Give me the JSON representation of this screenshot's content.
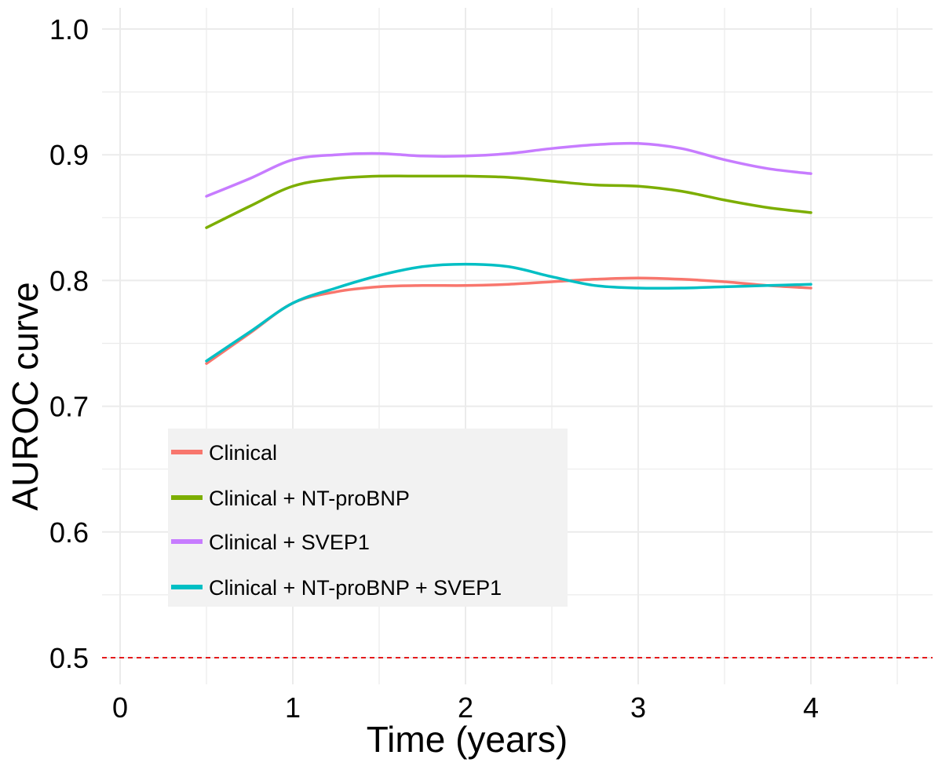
{
  "chart_data": {
    "type": "line",
    "xlabel": "Time (years)",
    "ylabel": "AUROC curve",
    "xlim": [
      0,
      4.7
    ],
    "ylim": [
      0.48,
      1.02
    ],
    "xticks": [
      "0",
      "1",
      "2",
      "3",
      "4"
    ],
    "yticks": [
      "0.5",
      "0.6",
      "0.7",
      "0.8",
      "0.9",
      "1.0"
    ],
    "reference_line": {
      "y": 0.5,
      "style": "dashed",
      "color": "#e41a1c"
    },
    "legend_position": "bottom-left",
    "series": [
      {
        "name": "Clinical",
        "color": "#f8766d",
        "x": [
          0.5,
          0.75,
          1.0,
          1.25,
          1.5,
          1.75,
          2.0,
          2.25,
          2.5,
          2.75,
          3.0,
          3.25,
          3.5,
          3.75,
          4.0
        ],
        "y": [
          0.734,
          0.758,
          0.782,
          0.791,
          0.795,
          0.796,
          0.796,
          0.797,
          0.799,
          0.801,
          0.802,
          0.801,
          0.799,
          0.796,
          0.794
        ]
      },
      {
        "name": "Clinical + NT-proBNP",
        "color": "#7cae00",
        "x": [
          0.5,
          0.75,
          1.0,
          1.25,
          1.5,
          1.75,
          2.0,
          2.25,
          2.5,
          2.75,
          3.0,
          3.25,
          3.5,
          3.75,
          4.0
        ],
        "y": [
          0.842,
          0.859,
          0.875,
          0.881,
          0.883,
          0.883,
          0.883,
          0.882,
          0.879,
          0.876,
          0.875,
          0.871,
          0.864,
          0.858,
          0.854
        ]
      },
      {
        "name": "Clinical + SVEP1",
        "color": "#c77cff",
        "x": [
          0.5,
          0.75,
          1.0,
          1.25,
          1.5,
          1.75,
          2.0,
          2.25,
          2.5,
          2.75,
          3.0,
          3.25,
          3.5,
          3.75,
          4.0
        ],
        "y": [
          0.867,
          0.881,
          0.896,
          0.9,
          0.901,
          0.899,
          0.899,
          0.901,
          0.905,
          0.908,
          0.909,
          0.905,
          0.896,
          0.889,
          0.885
        ]
      },
      {
        "name": "Clinical + NT-proBNP + SVEP1",
        "color": "#00bfc4",
        "x": [
          0.5,
          0.75,
          1.0,
          1.25,
          1.5,
          1.75,
          2.0,
          2.25,
          2.5,
          2.75,
          3.0,
          3.25,
          3.5,
          3.75,
          4.0
        ],
        "y": [
          0.736,
          0.759,
          0.782,
          0.794,
          0.804,
          0.811,
          0.813,
          0.811,
          0.803,
          0.796,
          0.794,
          0.794,
          0.795,
          0.796,
          0.797
        ]
      }
    ]
  }
}
